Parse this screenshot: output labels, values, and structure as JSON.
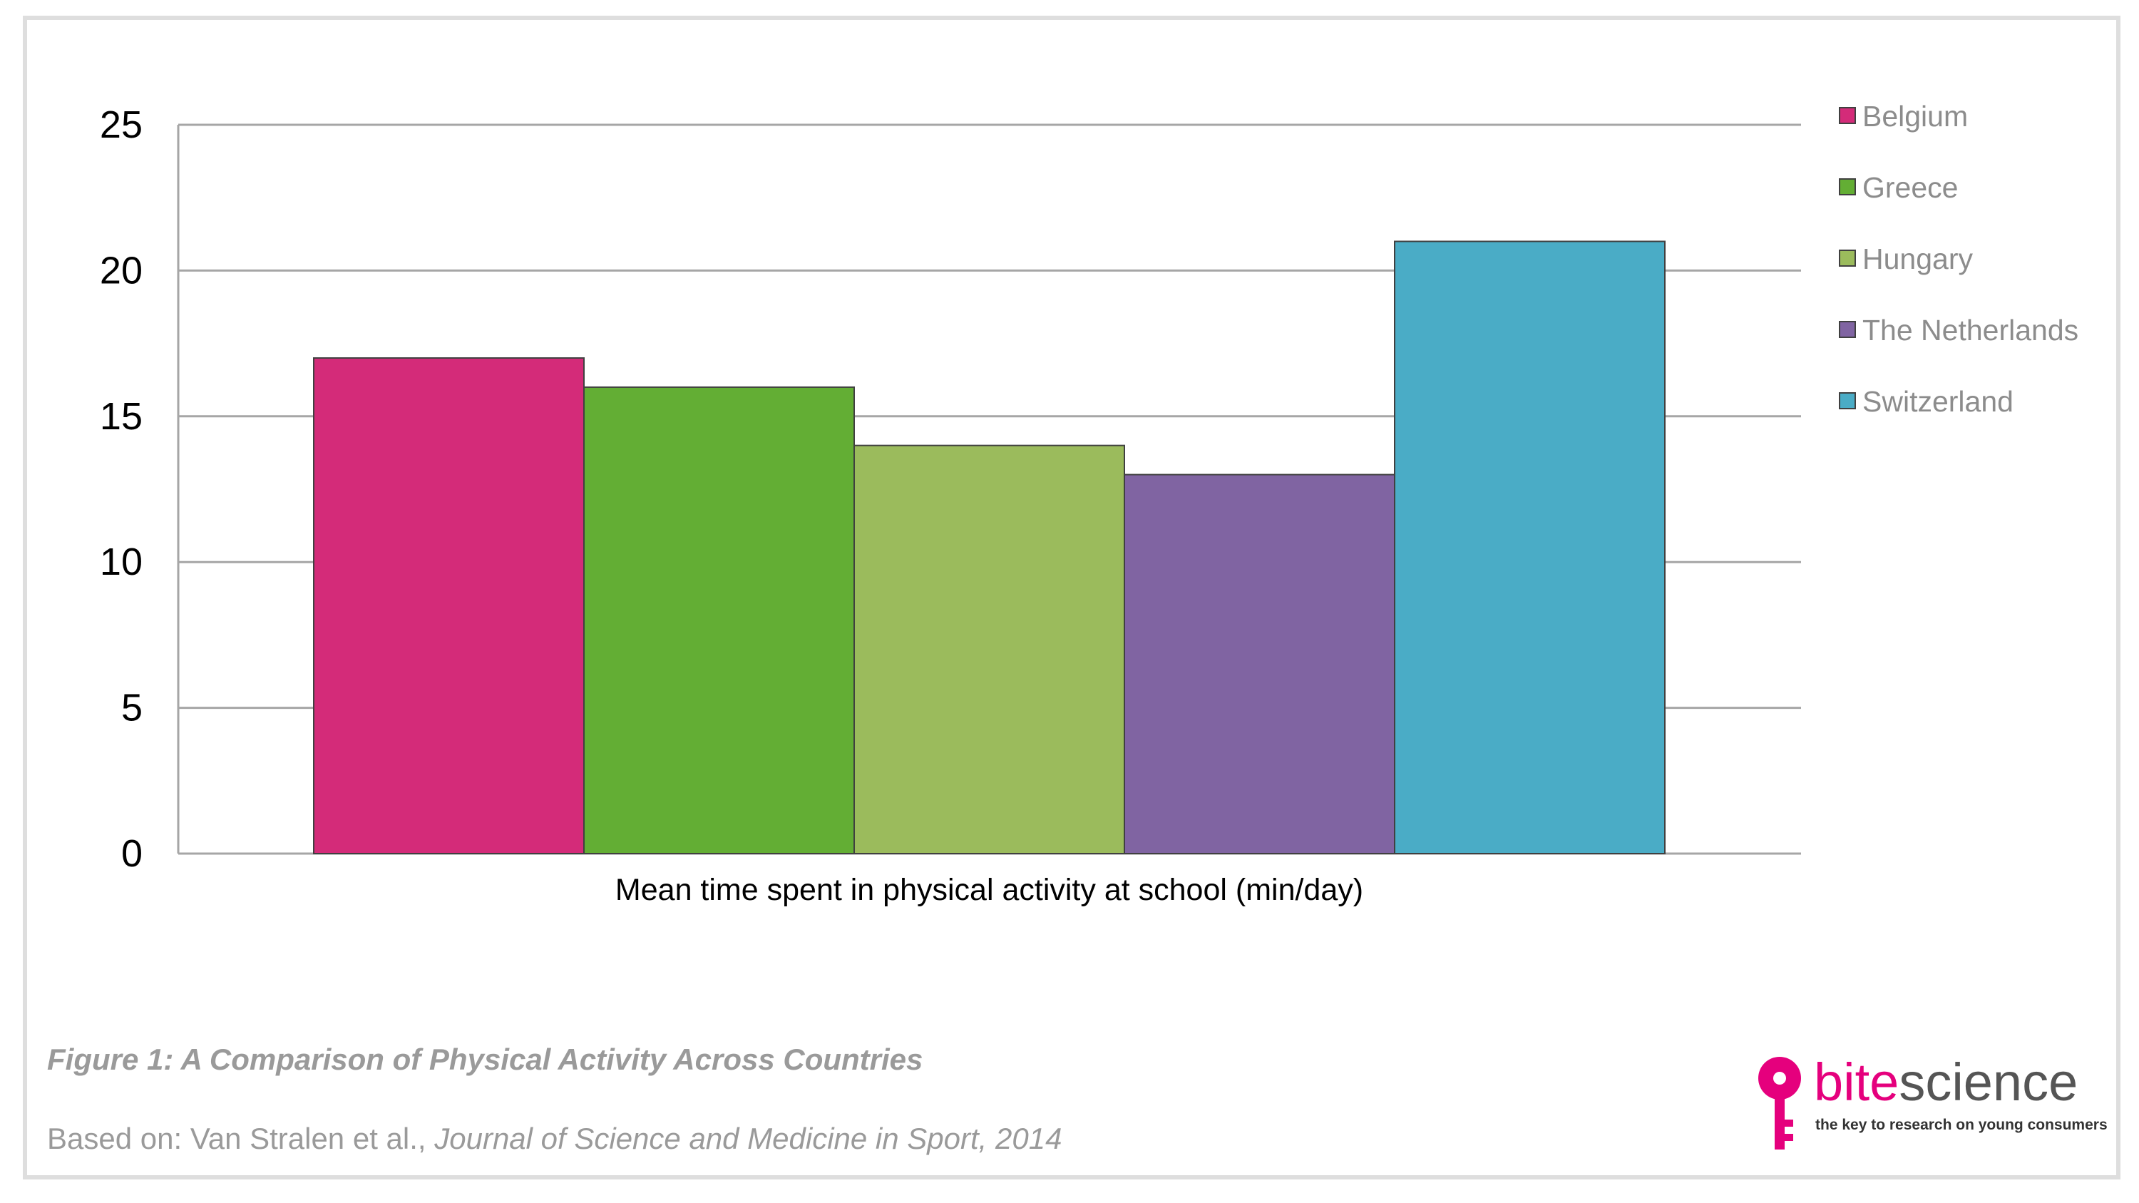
{
  "chart_data": {
    "type": "bar",
    "categories": [
      "Mean time spent in physical activity at school (min/day)"
    ],
    "series": [
      {
        "name": "Belgium",
        "values": [
          17
        ],
        "color": "#d42b79"
      },
      {
        "name": "Greece",
        "values": [
          16
        ],
        "color": "#63ae34"
      },
      {
        "name": "Hungary",
        "values": [
          14
        ],
        "color": "#9bbb5c"
      },
      {
        "name": "The Netherlands",
        "values": [
          13
        ],
        "color": "#8064a2"
      },
      {
        "name": "Switzerland",
        "values": [
          21
        ],
        "color": "#4aacc6"
      }
    ],
    "xlabel": "Mean time spent in physical activity at school (min/day)",
    "ylabel": "",
    "ylim": [
      0,
      25
    ],
    "yticks": [
      "0",
      "5",
      "10",
      "15",
      "20",
      "25"
    ],
    "grid": true,
    "legend_position": "right"
  },
  "figure": {
    "caption": "Figure 1: A Comparison of Physical Activity Across Countries",
    "source_prefix": "Based on: Van Stralen et al., ",
    "source_journal": "Journal of Science and Medicine in Sport, 2014"
  },
  "logo": {
    "word_bite": "bite",
    "word_science": "science",
    "tagline": "the key to research on young consumers",
    "brand_color": "#e5007d"
  }
}
